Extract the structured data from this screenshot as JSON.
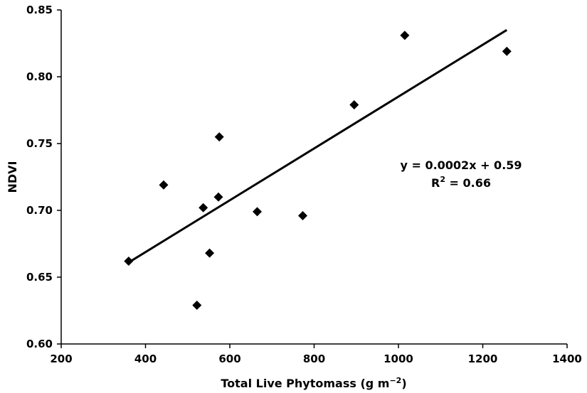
{
  "chart_data": {
    "type": "scatter",
    "title": "",
    "xlabel": "Total Live Phytomass (g m",
    "xlabel_unit_exponent": "−2",
    "xlabel_suffix": ")",
    "ylabel": "NDVI",
    "xlim": [
      200,
      1400
    ],
    "ylim": [
      0.6,
      0.85
    ],
    "x_ticks": [
      "200",
      "400",
      "600",
      "800",
      "1000",
      "1200",
      "1400"
    ],
    "y_ticks": [
      "0.60",
      "0.65",
      "0.70",
      "0.75",
      "0.80",
      "0.85"
    ],
    "grid": false,
    "legend": false,
    "marker": "diamond",
    "marker_color": "#000000",
    "points": [
      {
        "x": 360,
        "y": 0.662
      },
      {
        "x": 443,
        "y": 0.719
      },
      {
        "x": 522,
        "y": 0.629
      },
      {
        "x": 537,
        "y": 0.702
      },
      {
        "x": 552,
        "y": 0.668
      },
      {
        "x": 573,
        "y": 0.71
      },
      {
        "x": 575,
        "y": 0.755
      },
      {
        "x": 665,
        "y": 0.699
      },
      {
        "x": 773,
        "y": 0.696
      },
      {
        "x": 895,
        "y": 0.779
      },
      {
        "x": 1015,
        "y": 0.831
      },
      {
        "x": 1257,
        "y": 0.819
      }
    ],
    "trendline": {
      "x": [
        360,
        1257
      ],
      "y": [
        0.661,
        0.835
      ]
    },
    "annotation": {
      "equation": "y = 0.0002x + 0.59",
      "r2_prefix": "R",
      "r2_exponent": "2",
      "r2_suffix": " = 0.66"
    }
  }
}
